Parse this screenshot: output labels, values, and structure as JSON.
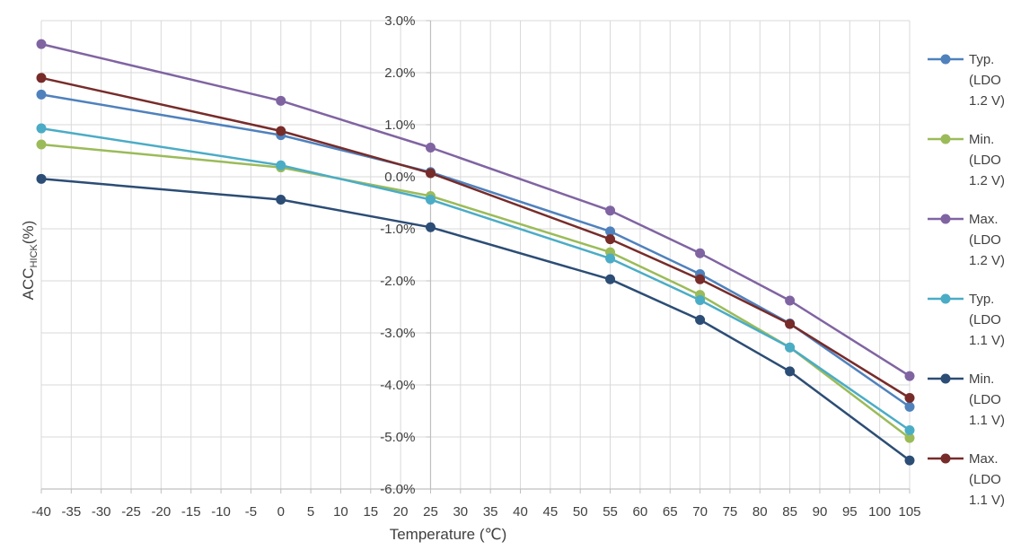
{
  "chart_data": {
    "type": "line",
    "title": "",
    "xlabel": "Temperature (℃)",
    "ylabel": {
      "base": "ACC",
      "subscript": "HICK",
      "suffix": "(%)"
    },
    "xlim": [
      -40,
      105
    ],
    "ylim": [
      -6.0,
      3.0
    ],
    "x_ticks": [
      -40,
      -35,
      -30,
      -25,
      -20,
      -15,
      -10,
      -5,
      0,
      5,
      10,
      15,
      20,
      25,
      30,
      35,
      40,
      45,
      50,
      55,
      60,
      65,
      70,
      75,
      80,
      85,
      90,
      95,
      100,
      105
    ],
    "y_ticks": [
      3.0,
      2.0,
      1.0,
      0.0,
      -1.0,
      -2.0,
      -3.0,
      -4.0,
      -5.0,
      -6.0
    ],
    "y_tick_labels": [
      "3.0%",
      "2.0%",
      "1.0%",
      "0.0%",
      "-1.0%",
      "-2.0%",
      "-3.0%",
      "-4.0%",
      "-5.0%",
      "-6.0%"
    ],
    "y_axis_crosses_at_x": 25,
    "grid": true,
    "legend_position": "right",
    "x": [
      -40,
      0,
      25,
      55,
      70,
      85,
      105
    ],
    "series": [
      {
        "name": "Typ. (LDO 1.2 V)",
        "legend_lines": [
          "Typ.",
          "(LDO",
          "1.2 V)"
        ],
        "color": "#4F81BD",
        "values": [
          1.58,
          0.8,
          0.09,
          -1.05,
          -1.87,
          -2.82,
          -4.42
        ]
      },
      {
        "name": "Min. (LDO 1.2 V)",
        "legend_lines": [
          "Min.",
          "(LDO",
          "1.2 V)"
        ],
        "color": "#9BBB59",
        "values": [
          0.62,
          0.18,
          -0.37,
          -1.45,
          -2.27,
          -3.28,
          -5.02
        ]
      },
      {
        "name": "Max. (LDO 1.2 V)",
        "legend_lines": [
          "Max.",
          "(LDO",
          "1.2 V)"
        ],
        "color": "#8064A2",
        "values": [
          2.55,
          1.46,
          0.56,
          -0.65,
          -1.47,
          -2.38,
          -3.83
        ]
      },
      {
        "name": "Typ. (LDO 1.1 V)",
        "legend_lines": [
          "Typ.",
          "(LDO",
          "1.1 V)"
        ],
        "color": "#4BACC6",
        "values": [
          0.93,
          0.22,
          -0.44,
          -1.57,
          -2.37,
          -3.28,
          -4.87
        ]
      },
      {
        "name": "Min. (LDO 1.1 V)",
        "legend_lines": [
          "Min.",
          "(LDO",
          "1.1 V)"
        ],
        "color": "#2C4D75",
        "values": [
          -0.04,
          -0.44,
          -0.97,
          -1.97,
          -2.75,
          -3.74,
          -5.45
        ]
      },
      {
        "name": "Max. (LDO 1.1 V)",
        "legend_lines": [
          "Max.",
          "(LDO",
          "1.1 V)"
        ],
        "color": "#772C2A",
        "values": [
          1.9,
          0.88,
          0.07,
          -1.2,
          -1.97,
          -2.83,
          -4.25
        ]
      }
    ]
  }
}
